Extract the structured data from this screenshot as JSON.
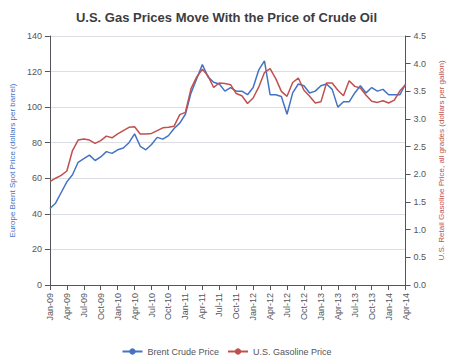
{
  "chart_data": {
    "type": "line",
    "title": "U.S. Gas Prices Move With the Price of Crude Oil",
    "ylabel": "Europe Brent Spot Price (dollars per barrel)",
    "y2label": "U.S. Retail Gasoline Price, all grades (dollars per gallon)",
    "categories": [
      "Jan-09",
      null,
      null,
      "Apr-09",
      null,
      null,
      "Jul-09",
      null,
      null,
      "Oct-09",
      null,
      null,
      "Jan-10",
      null,
      null,
      "Apr-10",
      null,
      null,
      "Jul-10",
      null,
      null,
      "Oct-10",
      null,
      null,
      "Jan-11",
      null,
      null,
      "Apr-11",
      null,
      null,
      "Jul-11",
      null,
      null,
      "Oct-11",
      null,
      null,
      "Jan-12",
      null,
      null,
      "Apr-12",
      null,
      null,
      "Jul-12",
      null,
      null,
      "Oct-12",
      null,
      null,
      "Jan-13",
      null,
      null,
      "Apr-13",
      null,
      null,
      "Jul-13",
      null,
      null,
      "Oct-13",
      null,
      null,
      "Jan-14",
      null,
      null,
      "Apr-14"
    ],
    "series": [
      {
        "name": "Brent Crude Price",
        "color": "#4472C4",
        "values": [
          43,
          46,
          52,
          58,
          62,
          69,
          71,
          73,
          70,
          72,
          75,
          74,
          76,
          77,
          80,
          85,
          78,
          76,
          79,
          83,
          82,
          84,
          88,
          91,
          96,
          108,
          116,
          124,
          117,
          114,
          113,
          109,
          111,
          109,
          109,
          107,
          111,
          121,
          126,
          107,
          107,
          106,
          96,
          108,
          113,
          112,
          108,
          109,
          112,
          113,
          110,
          100,
          103,
          103,
          108,
          112,
          108,
          111,
          109,
          110,
          107,
          107,
          107,
          113
        ]
      },
      {
        "name": "U.S. Gasoline Price",
        "color": "#C0504D",
        "axis": "y2",
        "values": [
          1.87,
          1.93,
          1.98,
          2.06,
          2.43,
          2.62,
          2.64,
          2.62,
          2.56,
          2.61,
          2.69,
          2.66,
          2.73,
          2.79,
          2.85,
          2.86,
          2.73,
          2.73,
          2.74,
          2.79,
          2.84,
          2.85,
          2.87,
          3.08,
          3.12,
          3.55,
          3.76,
          3.9,
          3.78,
          3.57,
          3.65,
          3.64,
          3.62,
          3.46,
          3.42,
          3.28,
          3.38,
          3.58,
          3.84,
          3.91,
          3.73,
          3.5,
          3.41,
          3.66,
          3.74,
          3.52,
          3.41,
          3.29,
          3.31,
          3.65,
          3.65,
          3.52,
          3.42,
          3.69,
          3.59,
          3.56,
          3.43,
          3.32,
          3.3,
          3.33,
          3.29,
          3.34,
          3.51,
          3.62
        ]
      }
    ],
    "ylim": [
      0,
      140
    ],
    "yticks": [
      0,
      20,
      40,
      60,
      80,
      100,
      120,
      140
    ],
    "y2lim": [
      0,
      4.5
    ],
    "y2ticks": [
      {
        "value": 0,
        "label": "0.0"
      },
      0.5,
      {
        "value": 1,
        "label": "1.0"
      },
      1.5,
      {
        "value": 2,
        "label": "2.0"
      },
      2.5,
      {
        "value": 3,
        "label": "3.0"
      },
      3.5,
      {
        "value": 4,
        "label": "4.0"
      },
      4.5
    ],
    "grid": true,
    "legend": "bottom"
  }
}
